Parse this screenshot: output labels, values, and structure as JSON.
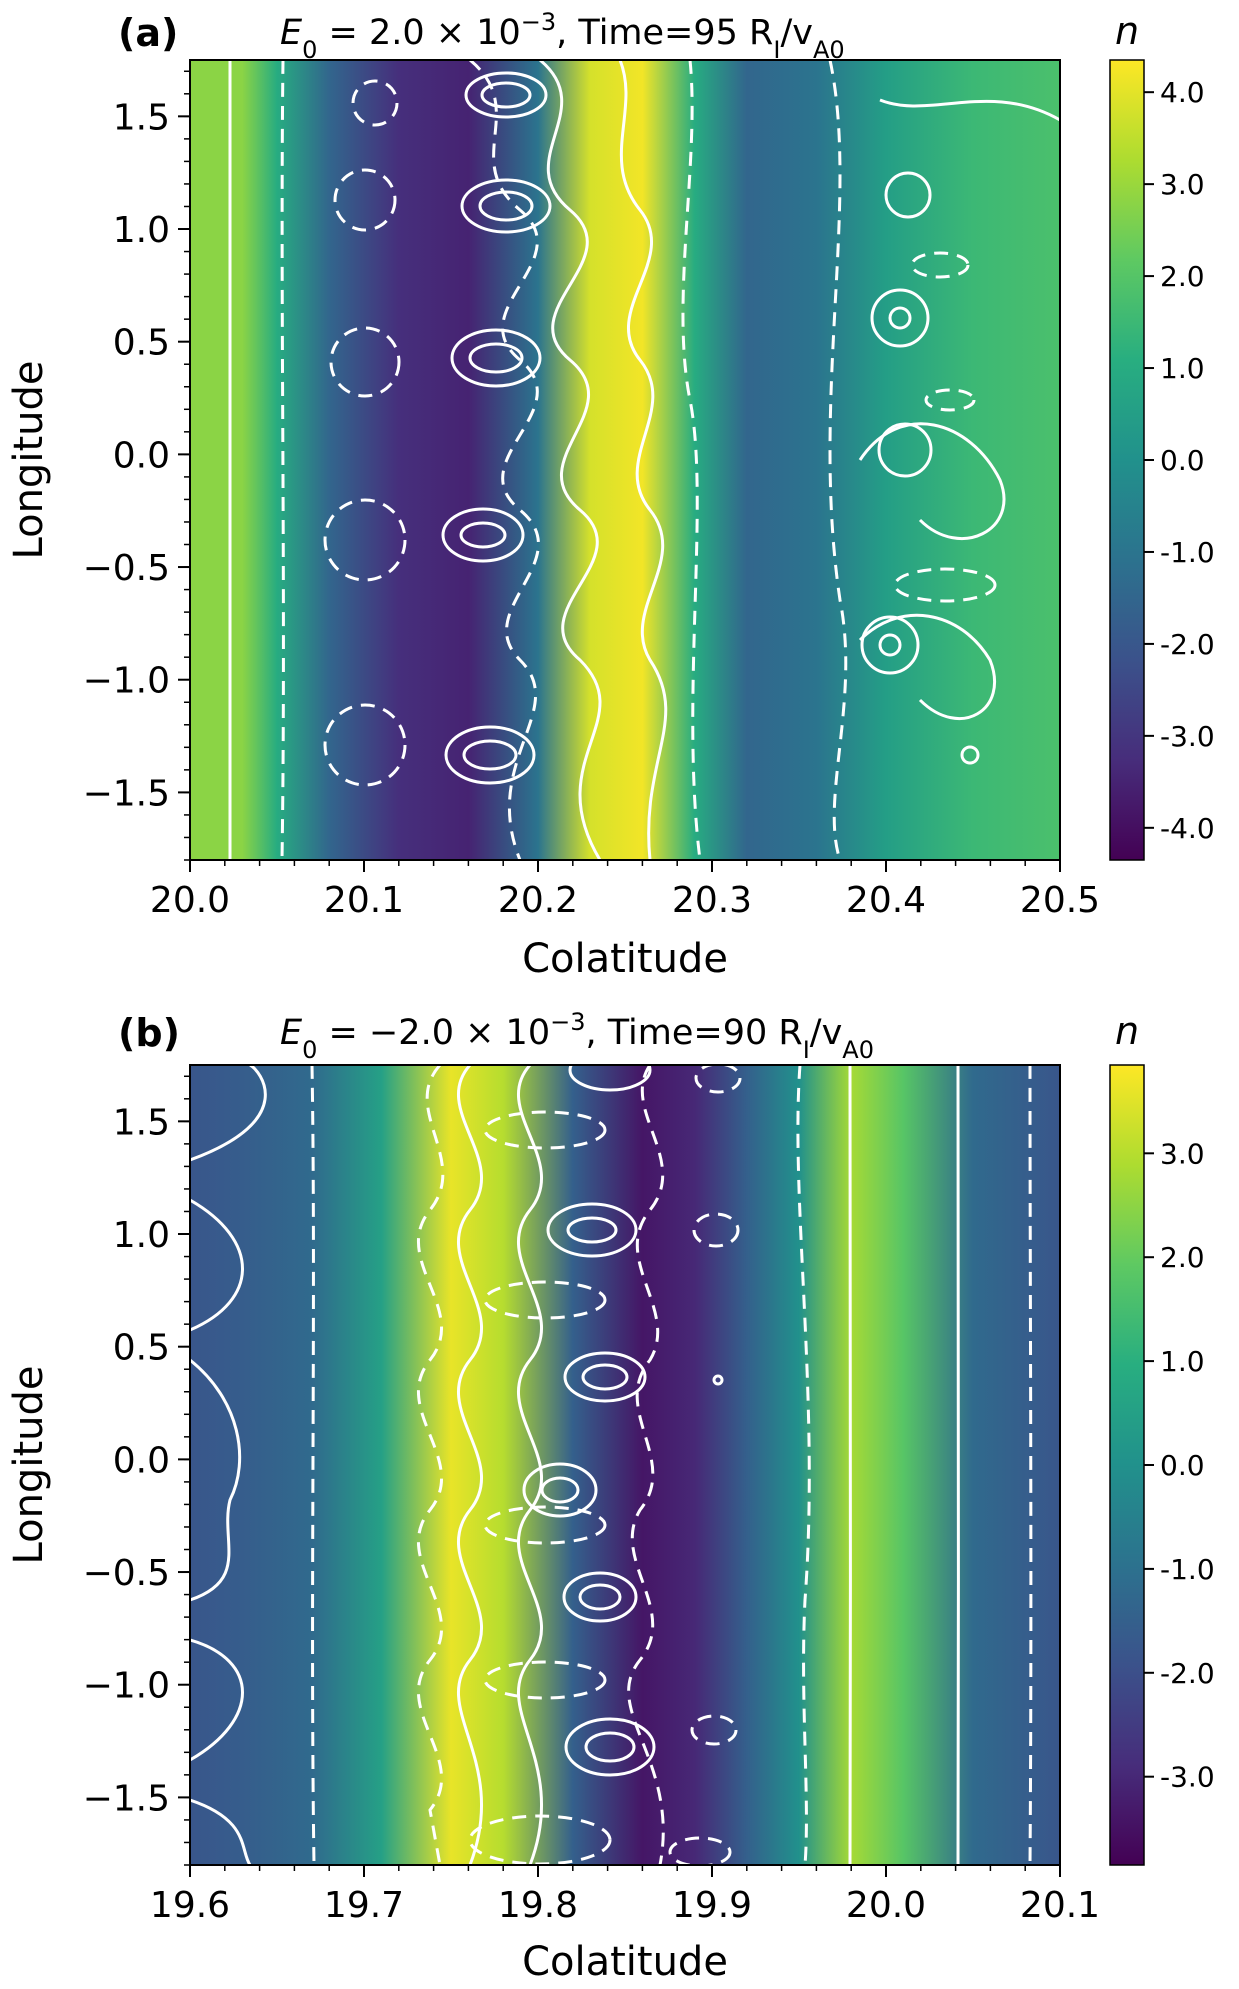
{
  "chart_data": [
    {
      "type": "heatmap",
      "panel_label": "(a)",
      "title_prefix": "E",
      "title_sub": "0",
      "title_mid": " = 2.0 × 10",
      "title_exp": "−3",
      "title_time": ", Time=95 R",
      "title_sub2": "I",
      "title_mid2": "/v",
      "title_sub3": "A0",
      "xlabel": "Colatitude",
      "ylabel": "Longitude",
      "xlim": [
        20.0,
        20.5
      ],
      "ylim": [
        -1.8,
        1.75
      ],
      "xticks": [
        20.0,
        20.1,
        20.2,
        20.3,
        20.4,
        20.5
      ],
      "xtick_labels": [
        "20.0",
        "20.1",
        "20.2",
        "20.3",
        "20.4",
        "20.5"
      ],
      "yticks": [
        -1.5,
        -1.0,
        -0.5,
        0.0,
        0.5,
        1.0,
        1.5
      ],
      "ytick_labels": [
        "−1.5",
        "−1.0",
        "−0.5",
        "0.0",
        "0.5",
        "1.0",
        "1.5"
      ],
      "colorbar_label": "n",
      "colorbar_range": [
        -4.35,
        4.35
      ],
      "colorbar_ticks": [
        4.0,
        3.0,
        2.0,
        1.0,
        0.0,
        -1.0,
        -2.0,
        -3.0,
        -4.0
      ],
      "colorbar_tick_labels": [
        "4.0",
        "3.0",
        "2.0",
        "1.0",
        "0.0",
        "-1.0",
        "-2.0",
        "-3.0",
        "-4.0"
      ],
      "colormap": "viridis",
      "density_profile": {
        "x": [
          20.0,
          20.03,
          20.05,
          20.08,
          20.12,
          20.16,
          20.2,
          20.23,
          20.26,
          20.29,
          20.32,
          20.36,
          20.4,
          20.45,
          20.5
        ],
        "n": [
          2.8,
          2.8,
          1.0,
          -1.5,
          -3.2,
          -3.5,
          -1.0,
          3.8,
          4.2,
          1.0,
          -1.5,
          -1.0,
          0.5,
          1.5,
          1.8
        ]
      }
    },
    {
      "type": "heatmap",
      "panel_label": "(b)",
      "title_prefix": "E",
      "title_sub": "0",
      "title_mid": " = −2.0 × 10",
      "title_exp": "−3",
      "title_time": ", Time=90 R",
      "title_sub2": "I",
      "title_mid2": "/v",
      "title_sub3": "A0",
      "xlabel": "Colatitude",
      "ylabel": "Longitude",
      "xlim": [
        19.6,
        20.1
      ],
      "ylim": [
        -1.8,
        1.75
      ],
      "xticks": [
        19.6,
        19.7,
        19.8,
        19.9,
        20.0,
        20.1
      ],
      "xtick_labels": [
        "19.6",
        "19.7",
        "19.8",
        "19.9",
        "20.0",
        "20.1"
      ],
      "yticks": [
        -1.5,
        -1.0,
        -0.5,
        0.0,
        0.5,
        1.0,
        1.5
      ],
      "ytick_labels": [
        "−1.5",
        "−1.0",
        "−0.5",
        "0.0",
        "0.5",
        "1.0",
        "1.5"
      ],
      "colorbar_label": "n",
      "colorbar_range": [
        -3.85,
        3.85
      ],
      "colorbar_ticks": [
        3.0,
        2.0,
        1.0,
        0.0,
        -1.0,
        -2.0,
        -3.0
      ],
      "colorbar_tick_labels": [
        "3.0",
        "2.0",
        "1.0",
        "0.0",
        "-1.0",
        "-2.0",
        "-3.0"
      ],
      "colormap": "viridis",
      "density_profile": {
        "x": [
          19.6,
          19.63,
          19.67,
          19.71,
          19.75,
          19.78,
          19.82,
          19.86,
          19.89,
          19.92,
          19.95,
          19.98,
          20.01,
          20.05,
          20.1
        ],
        "n": [
          -1.8,
          -1.6,
          -1.2,
          0.5,
          3.6,
          3.0,
          -1.5,
          -3.4,
          -3.0,
          -1.5,
          0.0,
          2.8,
          1.8,
          -1.2,
          -1.8
        ]
      }
    }
  ]
}
